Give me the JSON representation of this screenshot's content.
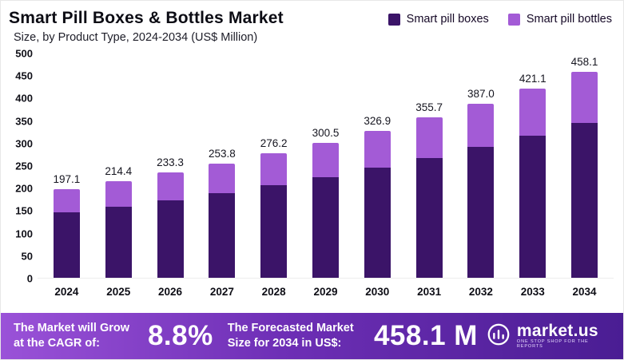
{
  "header": {
    "title": "Smart Pill Boxes & Bottles Market",
    "subtitle": "Size, by Product Type, 2024-2034 (US$ Million)"
  },
  "legend": [
    {
      "label": "Smart pill boxes",
      "color": "#3b1468"
    },
    {
      "label": "Smart pill bottles",
      "color": "#a35bd6"
    }
  ],
  "chart_data": {
    "type": "bar",
    "stacked": true,
    "title": "Smart Pill Boxes & Bottles Market Size, by Product Type, 2024-2034 (US$ Million)",
    "categories": [
      "2024",
      "2025",
      "2026",
      "2027",
      "2028",
      "2029",
      "2030",
      "2031",
      "2032",
      "2033",
      "2034"
    ],
    "series": [
      {
        "name": "Smart pill boxes",
        "color": "#3b1468",
        "values": [
          145.0,
          158.0,
          172.0,
          188.0,
          205.0,
          224.0,
          244.0,
          266.0,
          290.0,
          316.0,
          344.0
        ]
      },
      {
        "name": "Smart pill bottles",
        "color": "#a35bd6",
        "values": [
          52.1,
          56.4,
          61.3,
          65.8,
          71.2,
          76.5,
          82.9,
          89.7,
          97.0,
          105.1,
          114.1
        ]
      }
    ],
    "totals": [
      "197.1",
      "214.4",
      "233.3",
      "253.8",
      "276.2",
      "300.5",
      "326.9",
      "355.7",
      "387.0",
      "421.1",
      "458.1"
    ],
    "xlabel": "",
    "ylabel": "",
    "ylim": [
      0,
      500
    ],
    "yticks": [
      0,
      50,
      100,
      150,
      200,
      250,
      300,
      350,
      400,
      450,
      500
    ],
    "grid": false,
    "legend_position": "top-right"
  },
  "footer": {
    "cagr_label": "The Market will Grow at the CAGR of:",
    "cagr_value": "8.8%",
    "forecast_label": "The Forecasted Market Size for 2034 in US$:",
    "forecast_value": "458.1 M",
    "brand_name": "market.us",
    "brand_tagline": "ONE STOP SHOP FOR THE REPORTS"
  }
}
